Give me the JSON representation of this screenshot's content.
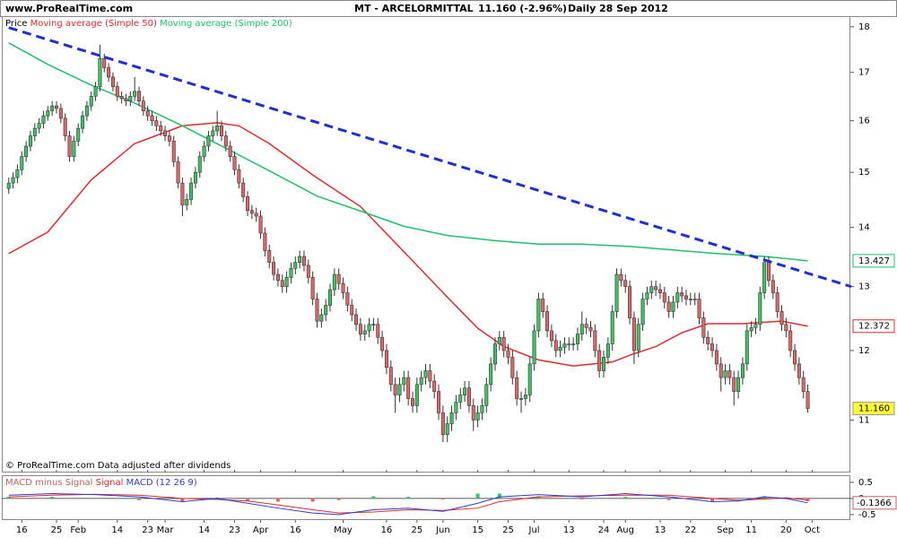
{
  "chart_data": {
    "type": "candlestick",
    "site": "www.ProRealTime.com",
    "title": "MT - ARCELORMITTAL",
    "quote": "11.160 (-2.96%)",
    "period": "Daily",
    "date": "28 Sep 2012",
    "price_label": "Price",
    "footnote": "© ProRealTime.com Data adjusted after dividends",
    "log_scale": true,
    "ylim": [
      10.3,
      18.24
    ],
    "yticks": [
      18,
      17,
      16,
      15,
      14,
      13,
      12,
      11
    ],
    "xlim": [
      -1.6,
      193.8
    ],
    "xticks": [
      {
        "value": 3,
        "label": "16"
      },
      {
        "value": 11,
        "label": "25"
      },
      {
        "value": 16,
        "label": "Feb"
      },
      {
        "value": 25,
        "label": "14"
      },
      {
        "value": 32,
        "label": "23"
      },
      {
        "value": 36,
        "label": "Mar"
      },
      {
        "value": 45,
        "label": "14"
      },
      {
        "value": 52,
        "label": "23"
      },
      {
        "value": 58,
        "label": "Apr"
      },
      {
        "value": 66,
        "label": "16"
      },
      {
        "value": 77,
        "label": "May"
      },
      {
        "value": 87,
        "label": "16"
      },
      {
        "value": 94,
        "label": "25"
      },
      {
        "value": 100,
        "label": "Jun"
      },
      {
        "value": 108,
        "label": "15"
      },
      {
        "value": 115,
        "label": "25"
      },
      {
        "value": 121,
        "label": "Jul"
      },
      {
        "value": 129,
        "label": "13"
      },
      {
        "value": 137,
        "label": "24"
      },
      {
        "value": 142,
        "label": "Aug"
      },
      {
        "value": 150,
        "label": "13"
      },
      {
        "value": 157,
        "label": "22"
      },
      {
        "value": 165,
        "label": "Sep"
      },
      {
        "value": 171,
        "label": "11"
      },
      {
        "value": 179,
        "label": "20"
      },
      {
        "value": 185,
        "label": "Oct"
      }
    ],
    "up_color": "#3dc462",
    "down_color": "#e06666",
    "open": [
      14.7,
      14.8,
      14.9,
      15.05,
      15.3,
      15.5,
      15.7,
      15.85,
      15.95,
      16.1,
      16.2,
      16.3,
      16.25,
      16.05,
      15.7,
      15.3,
      15.6,
      15.85,
      16.1,
      16.3,
      16.5,
      16.7,
      17.3,
      17.1,
      16.9,
      16.7,
      16.5,
      16.45,
      16.4,
      16.5,
      16.6,
      16.4,
      16.2,
      16.1,
      16.0,
      15.9,
      15.8,
      15.7,
      15.6,
      15.2,
      14.8,
      14.4,
      14.5,
      14.8,
      15.0,
      15.3,
      15.5,
      15.7,
      15.8,
      15.9,
      15.7,
      15.5,
      15.3,
      15.05,
      14.8,
      14.55,
      14.3,
      14.25,
      14.2,
      13.9,
      13.6,
      13.4,
      13.2,
      13.1,
      13.0,
      13.15,
      13.3,
      13.4,
      13.5,
      13.35,
      13.15,
      12.8,
      12.45,
      12.55,
      12.7,
      12.95,
      13.2,
      13.05,
      12.9,
      12.7,
      12.55,
      12.4,
      12.25,
      12.3,
      12.4,
      12.4,
      12.2,
      12.0,
      11.75,
      11.5,
      11.35,
      11.5,
      11.6,
      11.3,
      11.2,
      11.5,
      11.6,
      11.7,
      11.55,
      11.4,
      11.1,
      10.8,
      10.95,
      11.1,
      11.25,
      11.35,
      11.45,
      11.2,
      11.0,
      11.1,
      11.2,
      11.5,
      11.8,
      12.1,
      12.2,
      12.0,
      11.9,
      11.6,
      11.3,
      11.3,
      11.35,
      11.8,
      12.3,
      12.8,
      12.6,
      12.3,
      12.15,
      12.0,
      12.05,
      12.1,
      12.1,
      12.1,
      12.25,
      12.4,
      12.35,
      12.3,
      12.0,
      11.7,
      11.9,
      12.1,
      12.6,
      13.2,
      13.1,
      13.0,
      12.5,
      12.0,
      12.4,
      12.8,
      12.9,
      13.0,
      12.95,
      12.9,
      12.75,
      12.6,
      12.75,
      12.9,
      12.85,
      12.8,
      12.8,
      12.8,
      12.5,
      12.2,
      12.1,
      12.0,
      11.8,
      11.6,
      11.7,
      11.6,
      11.4,
      11.6,
      11.8,
      12.3,
      12.35,
      12.4,
      12.9,
      13.4,
      13.1,
      12.9,
      12.6,
      12.4,
      12.3,
      12.0,
      11.8,
      11.6,
      11.4
    ],
    "high": [
      14.9,
      15.0,
      15.15,
      15.4,
      15.6,
      15.8,
      15.95,
      16.05,
      16.2,
      16.3,
      16.4,
      16.4,
      16.35,
      16.15,
      15.8,
      15.7,
      15.95,
      16.2,
      16.4,
      16.6,
      16.8,
      17.6,
      17.4,
      17.2,
      17.0,
      16.8,
      16.6,
      16.55,
      16.6,
      16.9,
      16.7,
      16.5,
      16.3,
      16.2,
      16.1,
      16.0,
      15.9,
      15.8,
      15.7,
      15.3,
      14.9,
      14.6,
      14.9,
      15.1,
      15.4,
      15.6,
      15.8,
      15.9,
      16.2,
      16.0,
      15.8,
      15.6,
      15.4,
      15.15,
      14.9,
      14.65,
      14.4,
      14.35,
      14.3,
      14.0,
      13.7,
      13.5,
      13.3,
      13.2,
      13.25,
      13.4,
      13.5,
      13.6,
      13.6,
      13.45,
      13.25,
      12.9,
      12.65,
      12.8,
      13.05,
      13.3,
      13.3,
      13.15,
      13.0,
      12.8,
      12.65,
      12.5,
      12.4,
      12.5,
      12.5,
      12.5,
      12.3,
      12.1,
      11.85,
      11.6,
      11.6,
      11.7,
      11.7,
      11.4,
      11.6,
      11.7,
      11.8,
      11.8,
      11.65,
      11.5,
      11.2,
      11.05,
      11.2,
      11.35,
      11.45,
      11.55,
      11.55,
      11.3,
      11.2,
      11.3,
      11.6,
      11.9,
      12.2,
      12.3,
      12.3,
      12.1,
      12.0,
      11.7,
      11.4,
      11.45,
      11.9,
      12.4,
      12.9,
      12.9,
      12.7,
      12.4,
      12.25,
      12.15,
      12.2,
      12.2,
      12.2,
      12.35,
      12.6,
      12.5,
      12.45,
      12.4,
      12.1,
      12.0,
      12.2,
      12.7,
      13.3,
      13.3,
      13.2,
      13.1,
      12.6,
      12.5,
      12.9,
      13.0,
      13.1,
      13.1,
      13.05,
      13.0,
      12.85,
      12.85,
      13.0,
      13.0,
      12.95,
      12.9,
      12.9,
      12.9,
      12.6,
      12.3,
      12.2,
      12.1,
      11.9,
      11.8,
      11.8,
      11.7,
      11.7,
      11.9,
      12.4,
      12.45,
      12.5,
      13.0,
      13.5,
      13.5,
      13.2,
      13.0,
      12.7,
      12.5,
      12.4,
      12.1,
      11.9,
      11.7,
      11.5
    ],
    "low": [
      14.6,
      14.7,
      14.8,
      14.95,
      15.2,
      15.4,
      15.6,
      15.75,
      15.85,
      16.0,
      16.1,
      16.15,
      15.95,
      15.6,
      15.2,
      15.2,
      15.5,
      15.75,
      16.0,
      16.2,
      16.4,
      16.6,
      17.0,
      16.8,
      16.6,
      16.4,
      16.35,
      16.3,
      16.3,
      16.4,
      16.3,
      16.1,
      16.0,
      15.9,
      15.8,
      15.7,
      15.6,
      15.5,
      15.1,
      14.7,
      14.2,
      14.3,
      14.4,
      14.7,
      14.9,
      15.2,
      15.4,
      15.6,
      15.7,
      15.6,
      15.4,
      15.2,
      14.95,
      14.7,
      14.45,
      14.2,
      14.15,
      14.1,
      13.8,
      13.5,
      13.3,
      13.1,
      13.0,
      12.9,
      12.9,
      13.05,
      13.2,
      13.3,
      13.25,
      13.05,
      12.7,
      12.35,
      12.35,
      12.45,
      12.6,
      12.85,
      12.95,
      12.8,
      12.6,
      12.45,
      12.3,
      12.15,
      12.15,
      12.2,
      12.3,
      12.1,
      11.9,
      11.65,
      11.4,
      11.1,
      11.25,
      11.4,
      11.2,
      11.1,
      11.1,
      11.4,
      11.5,
      11.45,
      11.3,
      11.0,
      10.7,
      10.7,
      10.85,
      11.0,
      11.15,
      11.25,
      11.1,
      10.85,
      10.9,
      11.0,
      11.1,
      11.4,
      11.7,
      12.0,
      11.9,
      11.8,
      11.5,
      11.2,
      11.1,
      11.2,
      11.25,
      11.7,
      12.2,
      12.5,
      12.2,
      12.05,
      11.9,
      11.9,
      11.95,
      12.0,
      12.0,
      12.0,
      12.15,
      12.25,
      12.2,
      11.9,
      11.6,
      11.6,
      11.8,
      12.0,
      12.5,
      13.0,
      12.9,
      12.4,
      11.8,
      11.9,
      12.3,
      12.7,
      12.8,
      12.85,
      12.8,
      12.65,
      12.5,
      12.5,
      12.65,
      12.75,
      12.7,
      12.7,
      12.7,
      12.4,
      12.1,
      12.0,
      11.9,
      11.7,
      11.4,
      11.5,
      11.5,
      11.2,
      11.3,
      11.5,
      11.7,
      12.2,
      12.25,
      12.3,
      12.8,
      13.0,
      12.8,
      12.5,
      12.3,
      12.2,
      11.9,
      11.7,
      11.5,
      11.3,
      11.1
    ],
    "close": [
      14.8,
      14.9,
      15.05,
      15.3,
      15.5,
      15.7,
      15.85,
      15.95,
      16.1,
      16.2,
      16.3,
      16.25,
      16.05,
      15.7,
      15.3,
      15.6,
      15.85,
      16.1,
      16.3,
      16.5,
      16.7,
      17.3,
      17.1,
      16.9,
      16.7,
      16.5,
      16.45,
      16.4,
      16.5,
      16.6,
      16.4,
      16.2,
      16.1,
      16.0,
      15.9,
      15.8,
      15.7,
      15.6,
      15.2,
      14.8,
      14.4,
      14.5,
      14.8,
      15.0,
      15.3,
      15.5,
      15.7,
      15.8,
      15.9,
      15.7,
      15.5,
      15.3,
      15.05,
      14.8,
      14.55,
      14.3,
      14.25,
      14.2,
      13.9,
      13.6,
      13.4,
      13.2,
      13.1,
      13.0,
      13.15,
      13.3,
      13.4,
      13.5,
      13.35,
      13.15,
      12.8,
      12.45,
      12.55,
      12.7,
      12.95,
      13.2,
      13.05,
      12.9,
      12.7,
      12.55,
      12.4,
      12.25,
      12.3,
      12.4,
      12.4,
      12.2,
      12.0,
      11.75,
      11.5,
      11.35,
      11.5,
      11.6,
      11.3,
      11.2,
      11.5,
      11.6,
      11.7,
      11.55,
      11.4,
      11.1,
      10.8,
      10.95,
      11.1,
      11.25,
      11.35,
      11.45,
      11.2,
      11.0,
      11.1,
      11.2,
      11.5,
      11.8,
      12.1,
      12.2,
      12.0,
      11.9,
      11.6,
      11.3,
      11.3,
      11.35,
      11.8,
      12.3,
      12.8,
      12.6,
      12.3,
      12.15,
      12.0,
      12.05,
      12.1,
      12.1,
      12.1,
      12.25,
      12.4,
      12.35,
      12.3,
      12.0,
      11.7,
      11.9,
      12.1,
      12.6,
      13.2,
      13.1,
      13.0,
      12.5,
      12.0,
      12.4,
      12.8,
      12.9,
      13.0,
      12.95,
      12.9,
      12.75,
      12.6,
      12.75,
      12.9,
      12.85,
      12.8,
      12.8,
      12.8,
      12.5,
      12.2,
      12.1,
      12.0,
      11.8,
      11.6,
      11.7,
      11.6,
      11.4,
      11.6,
      11.8,
      12.3,
      12.35,
      12.4,
      12.9,
      13.4,
      13.1,
      12.9,
      12.6,
      12.4,
      12.3,
      12.0,
      11.8,
      11.6,
      11.4,
      11.16
    ],
    "close_label": "11.160",
    "series": [
      {
        "name": "Moving average (Simple 50)",
        "color": "#e02a2a",
        "x": [
          0,
          9,
          19,
          29,
          40,
          48,
          53,
          60,
          70,
          81,
          91,
          101,
          108,
          114,
          122,
          130,
          139,
          143,
          149,
          155,
          161,
          169,
          178,
          184
        ],
        "values": [
          13.55,
          13.92,
          14.86,
          15.55,
          15.9,
          15.96,
          15.9,
          15.55,
          14.95,
          14.37,
          13.58,
          12.83,
          12.34,
          12.06,
          11.86,
          11.77,
          11.83,
          11.93,
          12.06,
          12.27,
          12.41,
          12.41,
          12.45,
          12.372
        ]
      },
      {
        "name": "Moving average (Simple 200)",
        "color": "#1fc06a",
        "x": [
          0,
          9,
          19,
          29,
          40,
          50,
          60,
          71,
          81,
          91,
          101,
          112,
          122,
          132,
          143,
          153,
          163,
          174,
          184
        ],
        "values": [
          17.64,
          17.17,
          16.73,
          16.36,
          15.9,
          15.46,
          15.03,
          14.56,
          14.29,
          14.02,
          13.86,
          13.77,
          13.71,
          13.71,
          13.67,
          13.61,
          13.55,
          13.5,
          13.427
        ]
      }
    ],
    "trendline": {
      "color": "#1f2fd6",
      "x": [
        0,
        194
      ],
      "values": [
        17.98,
        13.0
      ]
    },
    "macd": {
      "ylim": [
        -0.67,
        0.72
      ],
      "yticks": [
        0.5,
        0,
        -0.5
      ],
      "x": [
        0,
        10,
        20,
        30,
        40,
        48,
        55,
        62,
        70,
        76,
        84,
        92,
        100,
        108,
        113,
        122,
        132,
        142,
        152,
        162,
        168,
        174,
        179,
        184
      ],
      "histogram": {
        "name": "MACD minus Signal",
        "up_color": "#3dc462",
        "down_color": "#e06666",
        "values": [
          0.05,
          0.05,
          -0.01,
          -0.05,
          -0.1,
          0.03,
          -0.07,
          -0.1,
          -0.1,
          -0.05,
          0.07,
          0.05,
          -0.03,
          0.15,
          0.15,
          0.07,
          -0.03,
          0.05,
          -0.05,
          -0.1,
          -0.02,
          0.07,
          -0.02,
          -0.09
        ]
      },
      "signal": {
        "name": "Signal",
        "color": "#e02a2a",
        "values": [
          0.05,
          0.1,
          0.13,
          0.1,
          0.0,
          -0.03,
          -0.08,
          -0.2,
          -0.35,
          -0.45,
          -0.42,
          -0.35,
          -0.37,
          -0.3,
          -0.1,
          0.05,
          0.08,
          0.1,
          0.1,
          0.0,
          -0.06,
          -0.02,
          0.02,
          -0.05
        ]
      },
      "line": {
        "name": "MACD (12 26 9)",
        "color": "#2a3ad6",
        "values": [
          0.1,
          0.15,
          0.12,
          0.05,
          -0.1,
          0.0,
          -0.15,
          -0.3,
          -0.45,
          -0.5,
          -0.35,
          -0.3,
          -0.4,
          -0.15,
          0.05,
          0.12,
          0.05,
          0.15,
          0.05,
          -0.1,
          -0.08,
          0.05,
          0.0,
          -0.1366
        ]
      }
    }
  }
}
